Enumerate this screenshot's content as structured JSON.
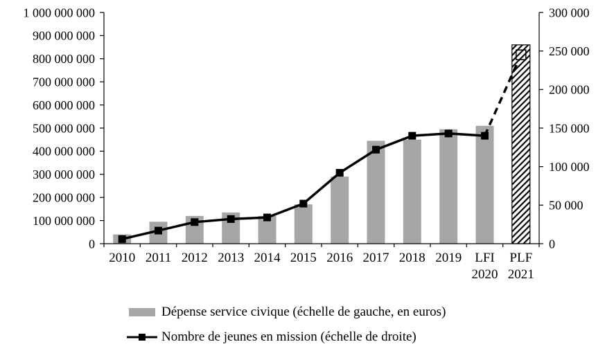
{
  "chart_data": {
    "type": "combo",
    "title": "",
    "grid": false,
    "legend_position": "bottom",
    "categories": [
      "2010",
      "2011",
      "2012",
      "2013",
      "2014",
      "2015",
      "2016",
      "2017",
      "2018",
      "2019",
      "LFI\n2020",
      "PLF\n2021"
    ],
    "series": [
      {
        "name": "Dépense service civique (échelle de gauche, en euros)",
        "type": "bar",
        "axis": "left",
        "color": "#a6a6a6",
        "values": [
          40000000,
          95000000,
          120000000,
          135000000,
          120000000,
          170000000,
          290000000,
          445000000,
          450000000,
          495000000,
          510000000,
          860000000
        ],
        "last_value_hatched": true
      },
      {
        "name": "Nombre de jeunes en mission (échelle de droite)",
        "type": "line",
        "axis": "right",
        "color": "#000000",
        "values": [
          6000,
          17000,
          28000,
          32000,
          34000,
          52000,
          92000,
          122000,
          140000,
          143000,
          140000,
          245000
        ],
        "last_segment_dashed": true,
        "last_marker_hatched": true
      }
    ],
    "left_axis": {
      "min": 0,
      "max": 1000000000,
      "tick_labels": [
        "0",
        "100 000 000",
        "200 000 000",
        "300 000 000",
        "400 000 000",
        "500 000 000",
        "600 000 000",
        "700 000 000",
        "800 000 000",
        "900 000 000",
        "1 000 000 000"
      ]
    },
    "right_axis": {
      "min": 0,
      "max": 300000,
      "tick_labels": [
        "0",
        "50 000",
        "100 000",
        "150 000",
        "200 000",
        "250 000",
        "300 000"
      ]
    }
  }
}
